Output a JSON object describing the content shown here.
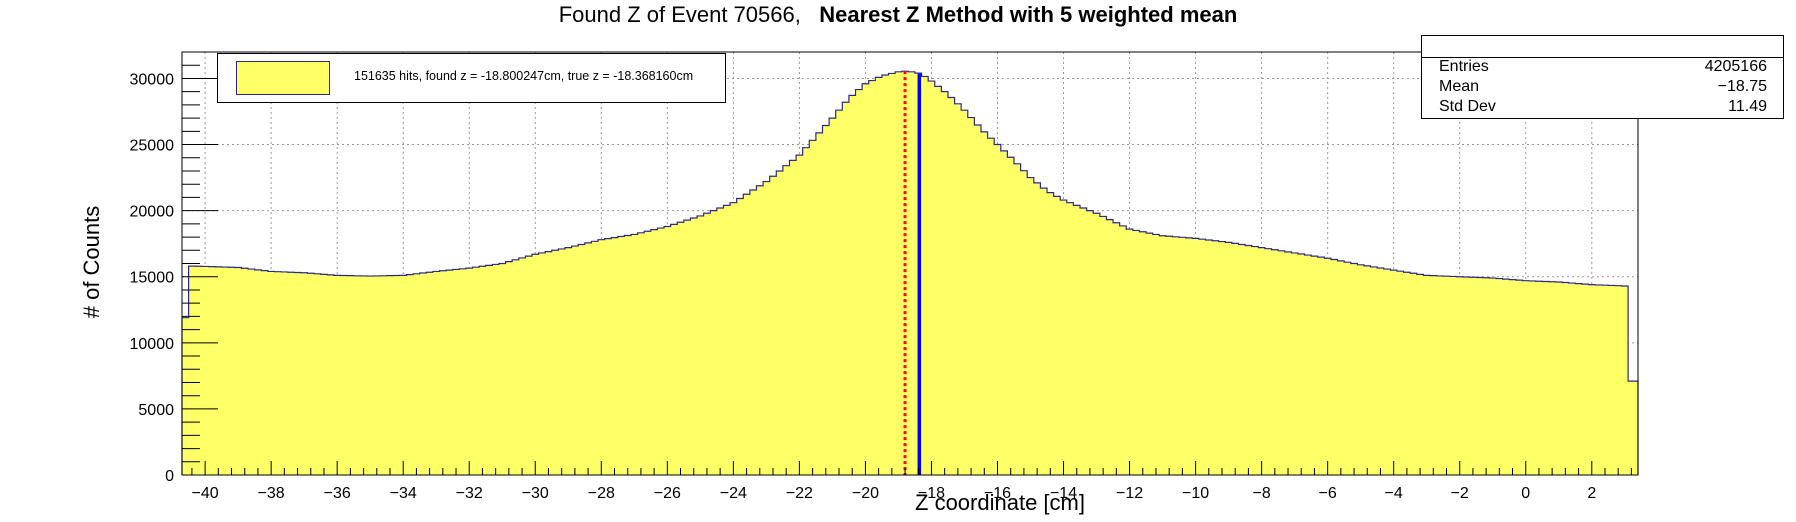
{
  "title": {
    "normal": "Found Z of Event 70566,",
    "bold": "Nearest Z Method with 5 weighted mean"
  },
  "legend": {
    "label": "151635 hits, found z = -18.800247cm, true z = -18.368160cm"
  },
  "stats": {
    "rows": [
      {
        "key": "Entries",
        "value": "4205166"
      },
      {
        "key": "Mean",
        "value": "−18.75"
      },
      {
        "key": "Std Dev",
        "value": "11.49"
      }
    ]
  },
  "colors": {
    "fill": "#ffff66",
    "outline": "#2a2a86",
    "found_line": "#ff0000",
    "true_line": "#0000ff",
    "grid": "#999999"
  },
  "chart_data": {
    "type": "bar",
    "xlabel": "Z coordinate [cm]",
    "ylabel": "# of Counts",
    "xlim": [
      -40.7,
      3.4
    ],
    "ylim": [
      0,
      32000
    ],
    "grid": true,
    "legend_position": "top-left",
    "x_ticks": [
      -40,
      -38,
      -36,
      -34,
      -32,
      -30,
      -28,
      -26,
      -24,
      -22,
      -20,
      -18,
      -16,
      -14,
      -12,
      -10,
      -8,
      -6,
      -4,
      -2,
      0,
      2
    ],
    "x_tick_labels": [
      "−40",
      "−38",
      "−36",
      "−34",
      "−32",
      "−30",
      "−28",
      "−26",
      "−24",
      "−22",
      "−20",
      "−18",
      "−16",
      "−14",
      "−12",
      "−10",
      "−8",
      "−6",
      "−4",
      "−2",
      "0",
      "2"
    ],
    "y_ticks": [
      0,
      5000,
      10000,
      15000,
      20000,
      25000,
      30000
    ],
    "y_tick_labels": [
      "0",
      "5000",
      "10000",
      "15000",
      "20000",
      "25000",
      "30000"
    ],
    "bin_width": 0.2,
    "profile_x": [
      -40.7,
      -40.5,
      -40.3,
      -39,
      -38,
      -37,
      -36,
      -35,
      -34,
      -33,
      -32,
      -31,
      -30,
      -29,
      -28,
      -27,
      -26,
      -25,
      -24,
      -23,
      -22,
      -21.5,
      -21,
      -20.5,
      -20,
      -19.5,
      -19,
      -18.8,
      -18.6,
      -18.4,
      -18.2,
      -18,
      -17.5,
      -17,
      -16.5,
      -16,
      -15.5,
      -15,
      -14.5,
      -14,
      -13,
      -12,
      -11,
      -10,
      -9,
      -8,
      -7,
      -6,
      -5,
      -4,
      -3,
      -2,
      -1,
      0,
      1,
      2,
      3,
      3.2,
      3.4
    ],
    "profile_y": [
      8000,
      15800,
      15800,
      15700,
      15400,
      15300,
      15100,
      15050,
      15100,
      15400,
      15650,
      16000,
      16700,
      17200,
      17800,
      18200,
      18800,
      19600,
      20600,
      22200,
      24200,
      25600,
      27000,
      28500,
      29600,
      30200,
      30500,
      30550,
      30500,
      30400,
      30150,
      29800,
      28800,
      27600,
      26200,
      25000,
      23800,
      22500,
      21500,
      20800,
      19800,
      18600,
      18100,
      17900,
      17600,
      17200,
      16800,
      16400,
      15900,
      15500,
      15100,
      15000,
      14900,
      14700,
      14600,
      14400,
      14300,
      7100,
      7100
    ],
    "annotations": [
      {
        "label": "found z",
        "x": -18.800247,
        "style": "dotted"
      },
      {
        "label": "true z",
        "x": -18.36816,
        "style": "solid"
      }
    ]
  }
}
